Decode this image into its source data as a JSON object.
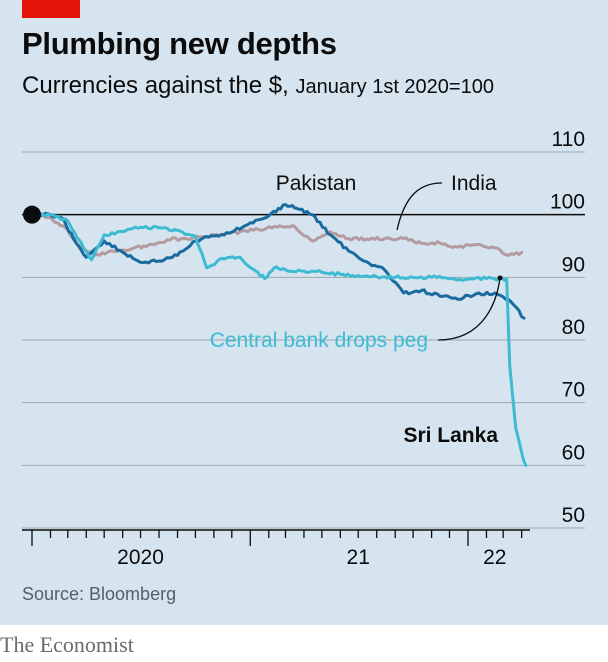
{
  "header": {
    "title": "Plumbing new depths",
    "subtitle_main": "Currencies against the $,",
    "subtitle_detail": "January 1st 2020=100"
  },
  "footer": {
    "source": "Source: Bloomberg",
    "brand": "The Economist"
  },
  "colors": {
    "background": "#d5e4ee",
    "brand_red": "#e3120b",
    "pakistan": "#1a6aa0",
    "india": "#b49ba0",
    "sri_lanka": "#3ebbd2",
    "gridline": "#9aa9b3"
  },
  "chart_data": {
    "type": "line",
    "title": "Plumbing new depths",
    "ylim": [
      50,
      110
    ],
    "yticks": [
      50,
      60,
      70,
      80,
      90,
      100,
      110
    ],
    "xlim": [
      "2020-01-01",
      "2022-04-15"
    ],
    "xticks_labels": [
      {
        "label": "2020",
        "date": "2020-07-01"
      },
      {
        "label": "21",
        "date": "2021-07-01"
      },
      {
        "label": "22",
        "date": "2022-02-15"
      }
    ],
    "grid": true,
    "series": [
      {
        "name": "India",
        "color": "#b49ba0",
        "points": [
          [
            "2020-01-01",
            100
          ],
          [
            "2020-02-01",
            99.6
          ],
          [
            "2020-03-01",
            97.5
          ],
          [
            "2020-03-20",
            95
          ],
          [
            "2020-04-15",
            93.5
          ],
          [
            "2020-05-15",
            94.2
          ],
          [
            "2020-06-15",
            94.5
          ],
          [
            "2020-07-15",
            95.2
          ],
          [
            "2020-08-15",
            96
          ],
          [
            "2020-09-15",
            96.2
          ],
          [
            "2020-10-15",
            96.5
          ],
          [
            "2020-11-15",
            96.8
          ],
          [
            "2020-12-15",
            97.3
          ],
          [
            "2021-01-15",
            97.6
          ],
          [
            "2021-02-15",
            98
          ],
          [
            "2021-03-15",
            98.2
          ],
          [
            "2021-04-15",
            95.8
          ],
          [
            "2021-05-15",
            97.3
          ],
          [
            "2021-06-15",
            96.2
          ],
          [
            "2021-07-15",
            96.1
          ],
          [
            "2021-08-15",
            96.2
          ],
          [
            "2021-09-15",
            96.2
          ],
          [
            "2021-10-15",
            95.4
          ],
          [
            "2021-11-15",
            95.5
          ],
          [
            "2021-12-15",
            94.8
          ],
          [
            "2022-01-15",
            95.2
          ],
          [
            "2022-02-15",
            94.7
          ],
          [
            "2022-03-10",
            93.5
          ],
          [
            "2022-04-01",
            94
          ]
        ]
      },
      {
        "name": "Pakistan",
        "color": "#1a6aa0",
        "points": [
          [
            "2020-01-01",
            100
          ],
          [
            "2020-02-01",
            100
          ],
          [
            "2020-02-20",
            99.5
          ],
          [
            "2020-03-15",
            95.5
          ],
          [
            "2020-04-01",
            93.2
          ],
          [
            "2020-05-01",
            95.8
          ],
          [
            "2020-06-01",
            94
          ],
          [
            "2020-07-01",
            92.4
          ],
          [
            "2020-08-01",
            92.6
          ],
          [
            "2020-09-01",
            93.5
          ],
          [
            "2020-10-01",
            95.8
          ],
          [
            "2020-11-01",
            96.6
          ],
          [
            "2020-12-01",
            97.2
          ],
          [
            "2021-01-01",
            98.7
          ],
          [
            "2021-02-01",
            99.8
          ],
          [
            "2021-03-01",
            101.6
          ],
          [
            "2021-03-20",
            101
          ],
          [
            "2021-04-15",
            100
          ],
          [
            "2021-05-15",
            96.8
          ],
          [
            "2021-06-15",
            94.2
          ],
          [
            "2021-07-15",
            92.5
          ],
          [
            "2021-08-15",
            91.1
          ],
          [
            "2021-09-15",
            87.5
          ],
          [
            "2021-10-15",
            87.9
          ],
          [
            "2021-11-15",
            87
          ],
          [
            "2021-12-15",
            86.5
          ],
          [
            "2022-01-15",
            87.4
          ],
          [
            "2022-02-15",
            87.5
          ],
          [
            "2022-03-15",
            86
          ],
          [
            "2022-04-05",
            83.5
          ]
        ]
      },
      {
        "name": "Sri Lanka",
        "color": "#3ebbd2",
        "points": [
          [
            "2020-01-01",
            100
          ],
          [
            "2020-02-01",
            100
          ],
          [
            "2020-03-01",
            99
          ],
          [
            "2020-03-20",
            96
          ],
          [
            "2020-04-10",
            92.8
          ],
          [
            "2020-05-01",
            96.8
          ],
          [
            "2020-06-01",
            97.3
          ],
          [
            "2020-07-01",
            98
          ],
          [
            "2020-08-01",
            97.9
          ],
          [
            "2020-09-01",
            97.5
          ],
          [
            "2020-10-01",
            96.5
          ],
          [
            "2020-10-20",
            91.5
          ],
          [
            "2020-11-15",
            93
          ],
          [
            "2020-12-15",
            93.2
          ],
          [
            "2021-01-10",
            91
          ],
          [
            "2021-01-25",
            89.8
          ],
          [
            "2021-02-10",
            91.5
          ],
          [
            "2021-03-01",
            91.2
          ],
          [
            "2021-04-01",
            91
          ],
          [
            "2021-05-01",
            90.8
          ],
          [
            "2021-06-01",
            90.5
          ],
          [
            "2021-07-01",
            90.3
          ],
          [
            "2021-08-01",
            90.1
          ],
          [
            "2021-09-01",
            90
          ],
          [
            "2021-10-01",
            90
          ],
          [
            "2021-11-01",
            90
          ],
          [
            "2021-12-01",
            89.8
          ],
          [
            "2022-01-01",
            89.7
          ],
          [
            "2022-02-01",
            89.8
          ],
          [
            "2022-03-07",
            89.7
          ],
          [
            "2022-03-12",
            76
          ],
          [
            "2022-03-22",
            66
          ],
          [
            "2022-04-01",
            62
          ],
          [
            "2022-04-08",
            60
          ]
        ]
      }
    ],
    "annotations": [
      {
        "text": "Pakistan"
      },
      {
        "text": "India"
      },
      {
        "text": "Central bank drops peg"
      },
      {
        "text": "Sri Lanka"
      }
    ]
  }
}
